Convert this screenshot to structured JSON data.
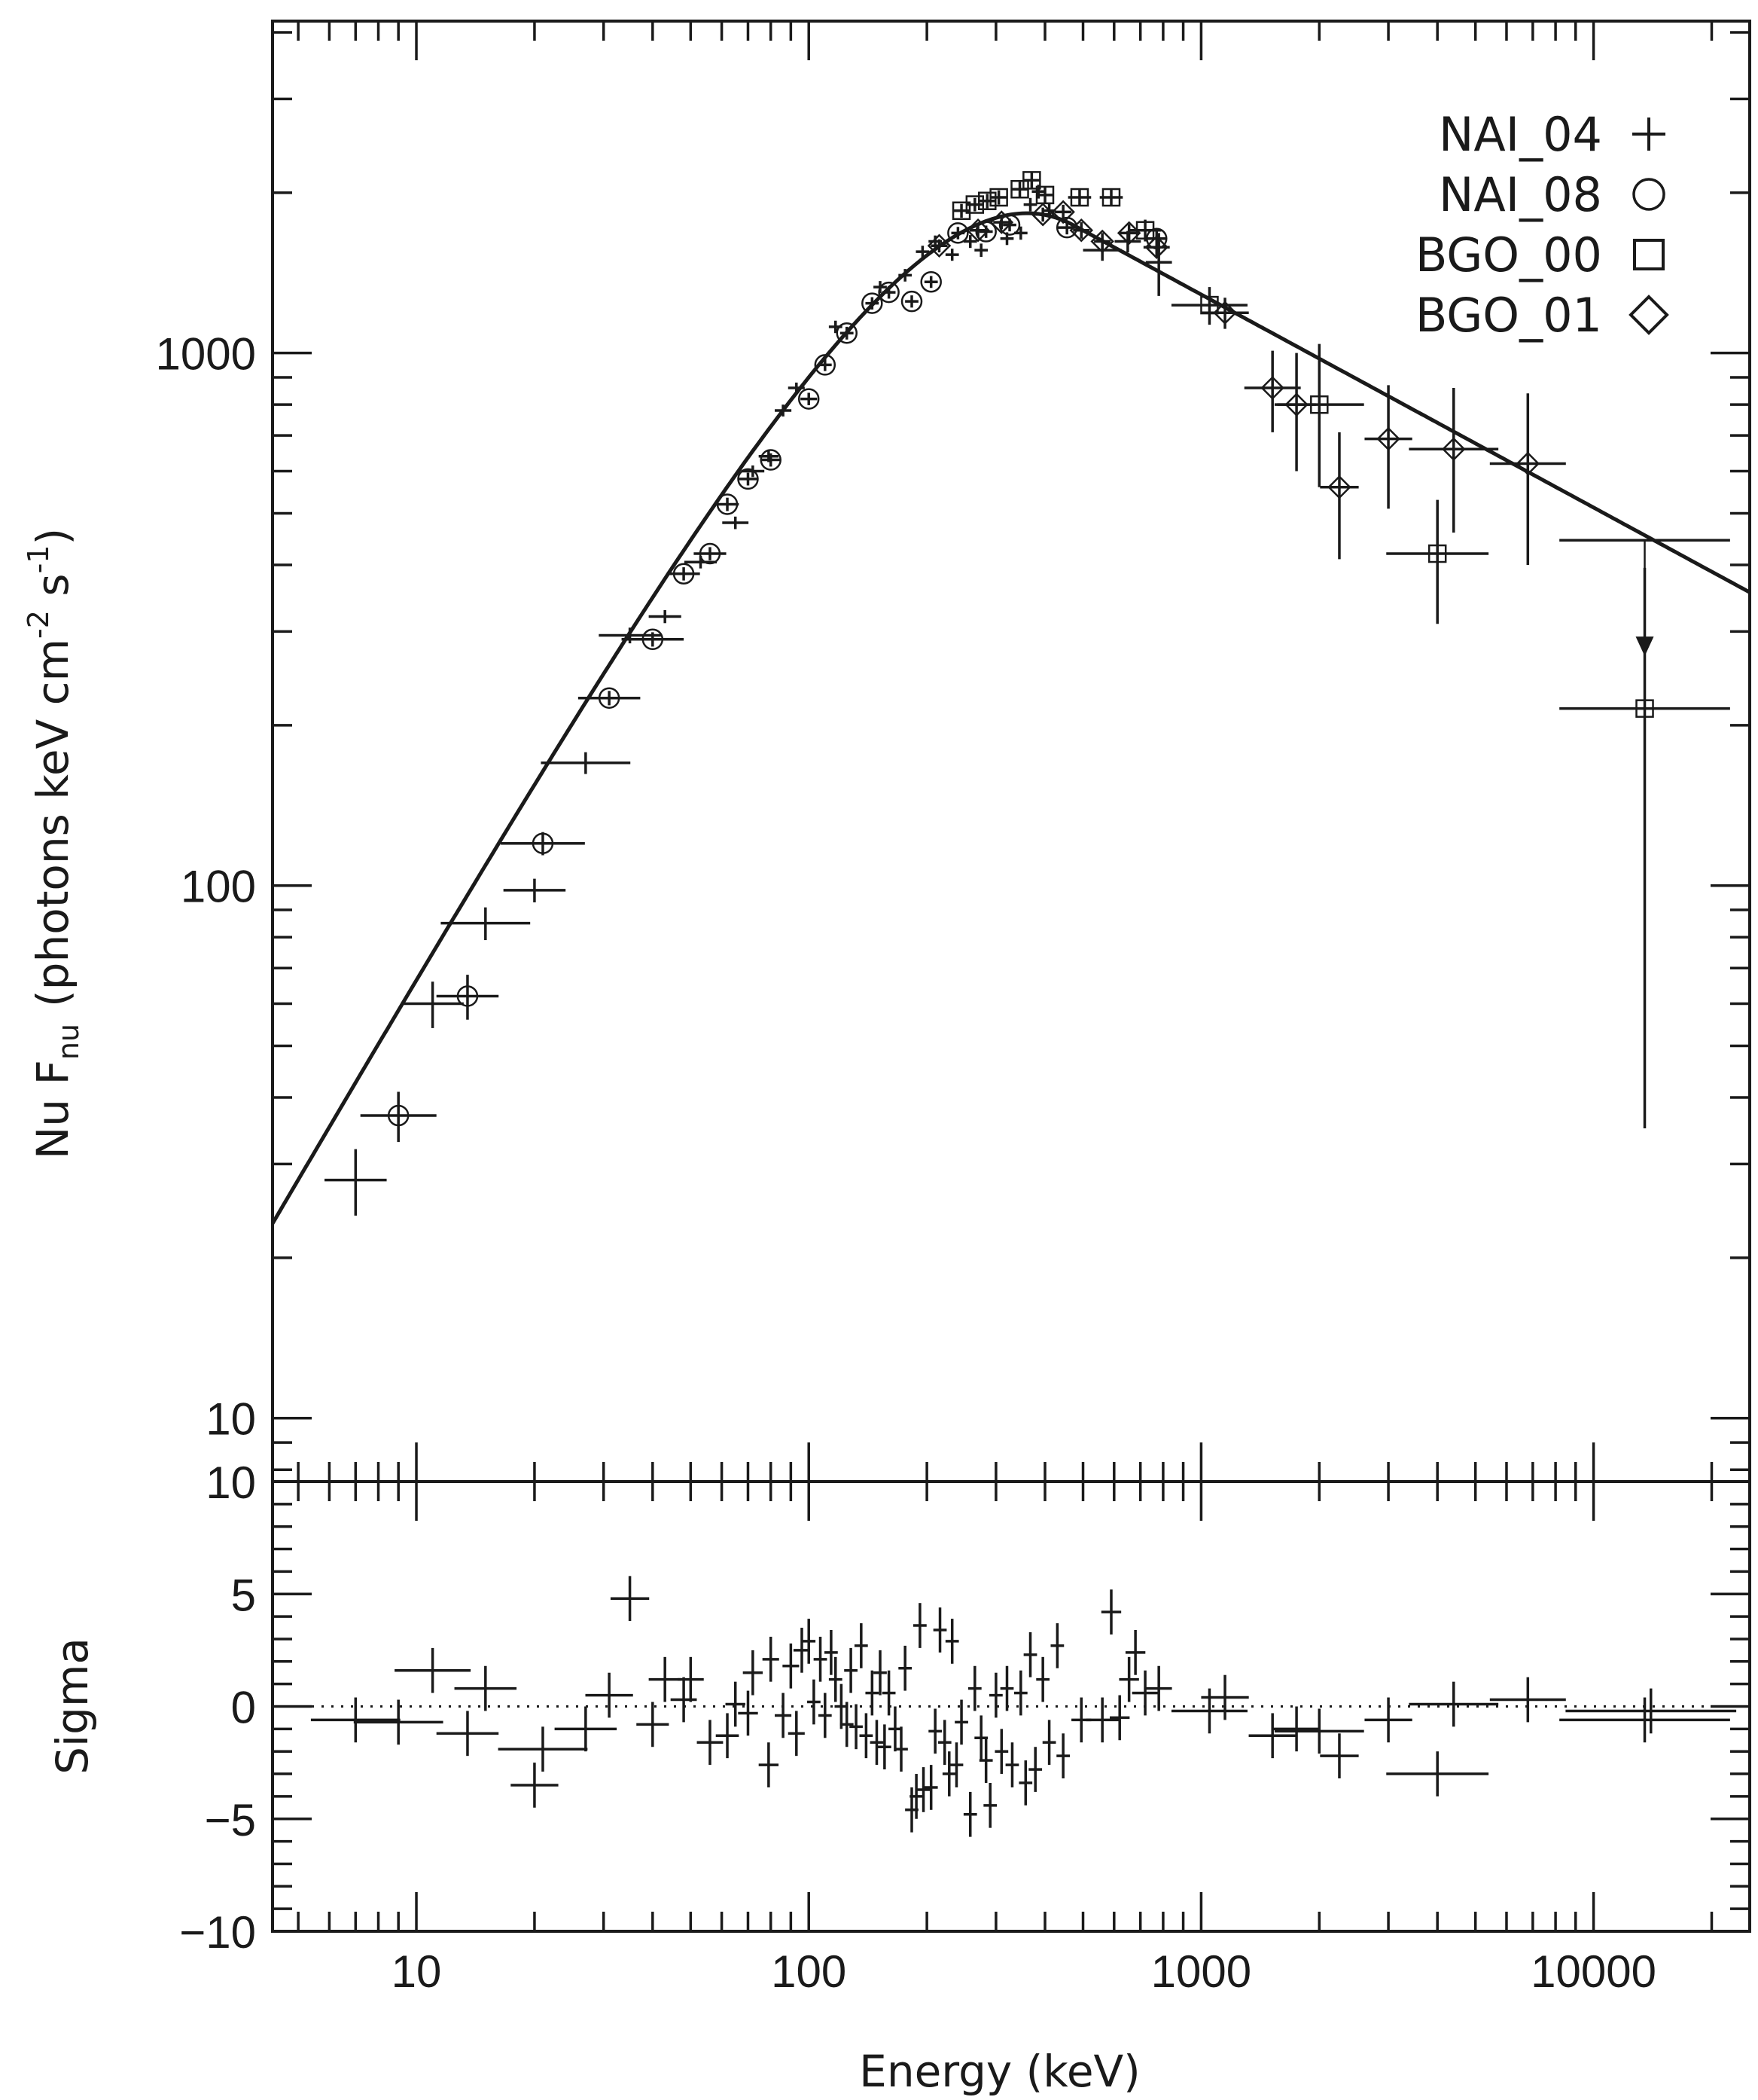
{
  "chart_data": [
    {
      "type": "scatter",
      "panel": "spectrum",
      "ylabel": "Nu F",
      "ylabel_sub": "nu",
      "ylabel_units": "(photons keV cm",
      "ylabel_exp1": "-2",
      "ylabel_s": " s",
      "ylabel_exp2": "-1",
      "ylabel_close": ")",
      "xscale": "log",
      "yscale": "log",
      "xlim": [
        4.3,
        25000
      ],
      "ylim": [
        7.6,
        4200
      ],
      "ytick_labels": [
        "10",
        "100",
        "1000"
      ],
      "legend": [
        {
          "label": "NAI_04",
          "marker": "plus"
        },
        {
          "label": "NAI_08",
          "marker": "circle"
        },
        {
          "label": "BGO_00",
          "marker": "square"
        },
        {
          "label": "BGO_01",
          "marker": "diamond"
        }
      ],
      "legend_position": "top-right",
      "model": {
        "name": "Band",
        "Ep": 360,
        "alpha_index": 1.27,
        "beta_index": -0.4,
        "norm_at_Ep": 1830,
        "x_range": [
          4.3,
          25000
        ]
      },
      "series": [
        {
          "name": "NAI_04",
          "marker": "plus",
          "points": [
            [
              7,
              28,
              1.2,
              4
            ],
            [
              11,
              60,
              1.2,
              6
            ],
            [
              15,
              85,
              1.3,
              6
            ],
            [
              20,
              98,
              1.2,
              5
            ],
            [
              27,
              170,
              1.3,
              8
            ],
            [
              35,
              295,
              1.2,
              10
            ],
            [
              43,
              320,
              1.1,
              9
            ],
            [
              53,
              405,
              1.1,
              11
            ],
            [
              65,
              480,
              1.08,
              13
            ],
            [
              72,
              600,
              1.07,
              15
            ],
            [
              79,
              640,
              1.06,
              16
            ],
            [
              86,
              780,
              1.05,
              20
            ],
            [
              93,
              860,
              1.05,
              20
            ],
            [
              117,
              1120,
              1.04,
              30
            ],
            [
              152,
              1330,
              1.04,
              35
            ],
            [
              176,
              1400,
              1.04,
              38
            ],
            [
              195,
              1550,
              1.04,
              40
            ],
            [
              210,
              1620,
              1.04,
              42
            ],
            [
              232,
              1530,
              1.04,
              40
            ],
            [
              258,
              1620,
              1.04,
              45
            ],
            [
              275,
              1560,
              1.04,
              45
            ],
            [
              320,
              1640,
              1.04,
              45
            ],
            [
              347,
              1680,
              1.04,
              48
            ],
            [
              367,
              1900,
              1.04,
              55
            ],
            [
              385,
              2010,
              1.04,
              60
            ],
            [
              410,
              1850,
              1.04,
              55
            ],
            [
              560,
              1560,
              1.12,
              70
            ],
            [
              650,
              1620,
              1.08,
              75
            ],
            [
              780,
              1480,
              1.08,
              200
            ]
          ]
        },
        {
          "name": "NAI_08",
          "marker": "circle",
          "points": [
            [
              9,
              37,
              1.25,
              4
            ],
            [
              13.5,
              62,
              1.2,
              6
            ],
            [
              21,
              120,
              1.28,
              6
            ],
            [
              31,
              225,
              1.2,
              7
            ],
            [
              40,
              290,
              1.2,
              9
            ],
            [
              48,
              385,
              1.1,
              11
            ],
            [
              56,
              420,
              1.1,
              12
            ],
            [
              62,
              520,
              1.07,
              15
            ],
            [
              70,
              580,
              1.06,
              16
            ],
            [
              80,
              630,
              1.06,
              18
            ],
            [
              100,
              820,
              1.05,
              22
            ],
            [
              110,
              950,
              1.04,
              25
            ],
            [
              125,
              1090,
              1.04,
              30
            ],
            [
              145,
              1240,
              1.04,
              33
            ],
            [
              160,
              1300,
              1.04,
              35
            ],
            [
              183,
              1250,
              1.04,
              33
            ],
            [
              205,
              1360,
              1.04,
              35
            ],
            [
              240,
              1680,
              1.04,
              45
            ],
            [
              283,
              1690,
              1.04,
              45
            ],
            [
              325,
              1740,
              1.04,
              48
            ],
            [
              455,
              1720,
              1.06,
              50
            ],
            [
              770,
              1640,
              1.06,
              55
            ]
          ]
        },
        {
          "name": "BGO_00",
          "marker": "square",
          "points": [
            [
              245,
              1850,
              1.05,
              55
            ],
            [
              265,
              1900,
              1.05,
              55
            ],
            [
              285,
              1930,
              1.05,
              60
            ],
            [
              305,
              1960,
              1.05,
              60
            ],
            [
              345,
              2030,
              1.05,
              65
            ],
            [
              370,
              2110,
              1.05,
              70
            ],
            [
              400,
              1980,
              1.05,
              65
            ],
            [
              490,
              1960,
              1.07,
              70
            ],
            [
              590,
              1960,
              1.07,
              75
            ],
            [
              720,
              1700,
              1.1,
              80
            ],
            [
              1050,
              1230,
              1.25,
              100
            ],
            [
              2000,
              800,
              1.3,
              240
            ],
            [
              4000,
              420,
              1.35,
              110
            ],
            [
              13500,
              215,
              1.65,
              180
            ]
          ]
        },
        {
          "name": "BGO_01",
          "marker": "diamond",
          "points": [
            [
              215,
              1590,
              1.05,
              45
            ],
            [
              270,
              1700,
              1.05,
              50
            ],
            [
              310,
              1760,
              1.05,
              52
            ],
            [
              395,
              1820,
              1.05,
              55
            ],
            [
              445,
              1840,
              1.05,
              58
            ],
            [
              495,
              1700,
              1.05,
              60
            ],
            [
              560,
              1620,
              1.05,
              60
            ],
            [
              655,
              1680,
              1.06,
              65
            ],
            [
              770,
              1580,
              1.08,
              70
            ],
            [
              1150,
              1190,
              1.15,
              80
            ],
            [
              1520,
              860,
              1.18,
              150
            ],
            [
              1750,
              800,
              1.12,
              200
            ],
            [
              2250,
              560,
              1.12,
              150
            ],
            [
              3000,
              690,
              1.15,
              180
            ],
            [
              4400,
              660,
              1.3,
              200
            ],
            [
              6800,
              620,
              1.25,
              220
            ]
          ]
        }
      ],
      "upper_limit": {
        "x": 13500,
        "y": 445,
        "xerr_factor": 1.65,
        "arrow_to": 275
      }
    },
    {
      "type": "scatter",
      "panel": "residuals",
      "title": "",
      "xlabel": "Energy (keV)",
      "ylabel": "Sigma",
      "xscale": "log",
      "xlim": [
        4.3,
        25000
      ],
      "ylim": [
        -10,
        10
      ],
      "xtick_labels": [
        "10",
        "100",
        "1000",
        "10000"
      ],
      "ytick_labels": [
        "10",
        "5",
        "0",
        "−5",
        "−10"
      ],
      "zero_line": "dotted",
      "points": [
        [
          7,
          -0.6,
          1.3,
          1.0
        ],
        [
          9,
          -0.7,
          1.3,
          1.0
        ],
        [
          11,
          1.6,
          1.25,
          1.0
        ],
        [
          13.5,
          -1.2,
          1.2,
          1.0
        ],
        [
          15,
          0.8,
          1.2,
          1.0
        ],
        [
          20,
          -3.5,
          1.15,
          1.0
        ],
        [
          21,
          -1.9,
          1.3,
          1.0
        ],
        [
          27,
          -1.0,
          1.2,
          1.0
        ],
        [
          31,
          0.5,
          1.15,
          1.0
        ],
        [
          35,
          4.8,
          1.12,
          1.0
        ],
        [
          40,
          -0.8,
          1.1,
          1.0
        ],
        [
          43,
          1.2,
          1.1,
          1.0
        ],
        [
          48,
          0.3,
          1.08,
          1.0
        ],
        [
          50,
          1.2,
          1.08,
          1.0
        ],
        [
          56,
          -1.6,
          1.08,
          1.0
        ],
        [
          62,
          -1.3,
          1.07,
          1.0
        ],
        [
          65,
          0.1,
          1.06,
          1.0
        ],
        [
          70,
          -0.3,
          1.06,
          1.0
        ],
        [
          72,
          1.5,
          1.06,
          1.0
        ],
        [
          79,
          -2.6,
          1.06,
          1.0
        ],
        [
          80,
          2.1,
          1.05,
          1.0
        ],
        [
          86,
          -0.4,
          1.05,
          1.0
        ],
        [
          90,
          1.8,
          1.05,
          1.0
        ],
        [
          93,
          -1.2,
          1.05,
          1.0
        ],
        [
          96,
          2.5,
          1.05,
          1.0
        ],
        [
          100,
          2.9,
          1.04,
          1.0
        ],
        [
          103,
          0.2,
          1.04,
          1.0
        ],
        [
          107,
          2.1,
          1.04,
          1.0
        ],
        [
          110,
          -0.4,
          1.04,
          1.0
        ],
        [
          114,
          2.4,
          1.04,
          1.0
        ],
        [
          117,
          1.2,
          1.04,
          1.0
        ],
        [
          121,
          0.0,
          1.04,
          1.0
        ],
        [
          125,
          -0.8,
          1.04,
          1.0
        ],
        [
          128,
          1.6,
          1.04,
          1.0
        ],
        [
          132,
          -0.9,
          1.04,
          1.0
        ],
        [
          136,
          2.7,
          1.04,
          1.0
        ],
        [
          140,
          -1.3,
          1.04,
          1.0
        ],
        [
          145,
          0.6,
          1.04,
          1.0
        ],
        [
          149,
          -1.6,
          1.04,
          1.0
        ],
        [
          152,
          1.5,
          1.04,
          1.0
        ],
        [
          156,
          -1.8,
          1.04,
          1.0
        ],
        [
          160,
          0.6,
          1.04,
          1.0
        ],
        [
          166,
          -1.0,
          1.04,
          1.0
        ],
        [
          172,
          -1.9,
          1.04,
          1.0
        ],
        [
          176,
          1.7,
          1.04,
          1.0
        ],
        [
          183,
          -4.6,
          1.04,
          1.0
        ],
        [
          188,
          -4.0,
          1.04,
          1.0
        ],
        [
          192,
          3.6,
          1.04,
          1.0
        ],
        [
          196,
          -3.7,
          1.04,
          1.0
        ],
        [
          205,
          -3.6,
          1.04,
          1.0
        ],
        [
          210,
          -1.1,
          1.04,
          1.0
        ],
        [
          216,
          3.4,
          1.04,
          1.0
        ],
        [
          222,
          -1.6,
          1.04,
          1.0
        ],
        [
          228,
          -3.0,
          1.04,
          1.0
        ],
        [
          232,
          2.9,
          1.04,
          1.0
        ],
        [
          238,
          -2.6,
          1.04,
          1.0
        ],
        [
          245,
          -0.7,
          1.04,
          1.0
        ],
        [
          258,
          -4.8,
          1.04,
          1.0
        ],
        [
          265,
          0.8,
          1.04,
          1.0
        ],
        [
          275,
          -1.4,
          1.04,
          1.0
        ],
        [
          283,
          -2.4,
          1.04,
          1.0
        ],
        [
          290,
          -4.4,
          1.04,
          1.0
        ],
        [
          300,
          0.5,
          1.04,
          1.0
        ],
        [
          310,
          -2.0,
          1.04,
          1.0
        ],
        [
          320,
          0.8,
          1.04,
          1.0
        ],
        [
          330,
          -2.6,
          1.04,
          1.0
        ],
        [
          347,
          0.6,
          1.04,
          1.0
        ],
        [
          357,
          -3.4,
          1.04,
          1.0
        ],
        [
          367,
          2.3,
          1.04,
          1.0
        ],
        [
          378,
          -2.8,
          1.04,
          1.0
        ],
        [
          395,
          1.2,
          1.04,
          1.0
        ],
        [
          410,
          -1.6,
          1.04,
          1.0
        ],
        [
          430,
          2.7,
          1.04,
          1.0
        ],
        [
          445,
          -2.2,
          1.04,
          1.0
        ],
        [
          495,
          -0.6,
          1.06,
          1.0
        ],
        [
          560,
          -0.6,
          1.1,
          1.0
        ],
        [
          590,
          4.2,
          1.06,
          1.0
        ],
        [
          620,
          -0.5,
          1.06,
          1.0
        ],
        [
          655,
          1.2,
          1.06,
          1.0
        ],
        [
          680,
          2.4,
          1.06,
          1.0
        ],
        [
          720,
          0.6,
          1.08,
          1.0
        ],
        [
          780,
          0.8,
          1.08,
          1.0
        ],
        [
          1050,
          -0.2,
          1.25,
          1.0
        ],
        [
          1150,
          0.4,
          1.15,
          1.0
        ],
        [
          1520,
          -1.3,
          1.15,
          1.0
        ],
        [
          1750,
          -1.0,
          1.15,
          1.0
        ],
        [
          2000,
          -1.1,
          1.3,
          1.0
        ],
        [
          2250,
          -2.2,
          1.12,
          1.0
        ],
        [
          3000,
          -0.6,
          1.15,
          1.0
        ],
        [
          4000,
          -3.0,
          1.35,
          1.0
        ],
        [
          4400,
          0.1,
          1.3,
          1.0
        ],
        [
          6800,
          0.3,
          1.25,
          1.0
        ],
        [
          13500,
          -0.6,
          1.65,
          1.0
        ],
        [
          14000,
          -0.2,
          1.65,
          1.0
        ]
      ]
    }
  ]
}
